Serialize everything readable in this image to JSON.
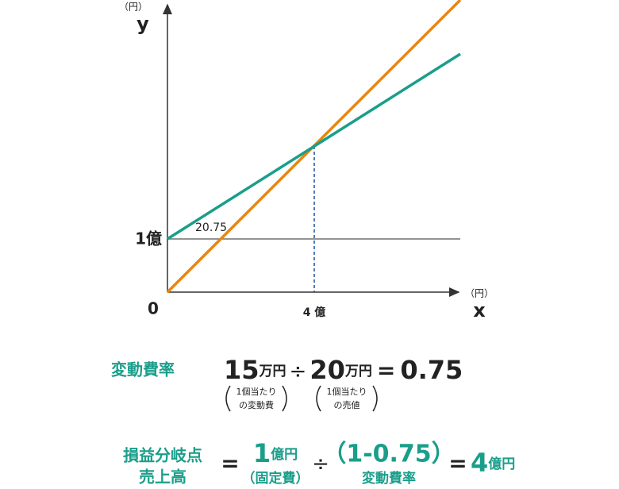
{
  "graph": {
    "y_unit": "（円）",
    "y_label": "y",
    "y_mark": "1億",
    "origin": "0",
    "x_mark": "4 億",
    "x_unit": "（円）",
    "x_label": "x",
    "line_label": "20.75"
  },
  "formula1": {
    "label": "変動費率",
    "term1_number": "15",
    "term1_unit": "万円",
    "op1": "÷",
    "term2_number": "20",
    "term2_unit": "万円",
    "op2": "=",
    "result": "0.75",
    "note1": [
      "1個当たり",
      "の変動費"
    ],
    "note2": [
      "1個当たり",
      "の売値"
    ]
  },
  "formula2": {
    "label": [
      "損益分岐点",
      "売上高"
    ],
    "op1": "=",
    "term1_number": "1",
    "term1_unit": "億円",
    "term1_note": "（固定費）",
    "op2": "÷",
    "term2": "（1-0.75）",
    "term2_note": "変動費率",
    "op3": "=",
    "result_number": "4",
    "result_unit": "億円"
  }
}
